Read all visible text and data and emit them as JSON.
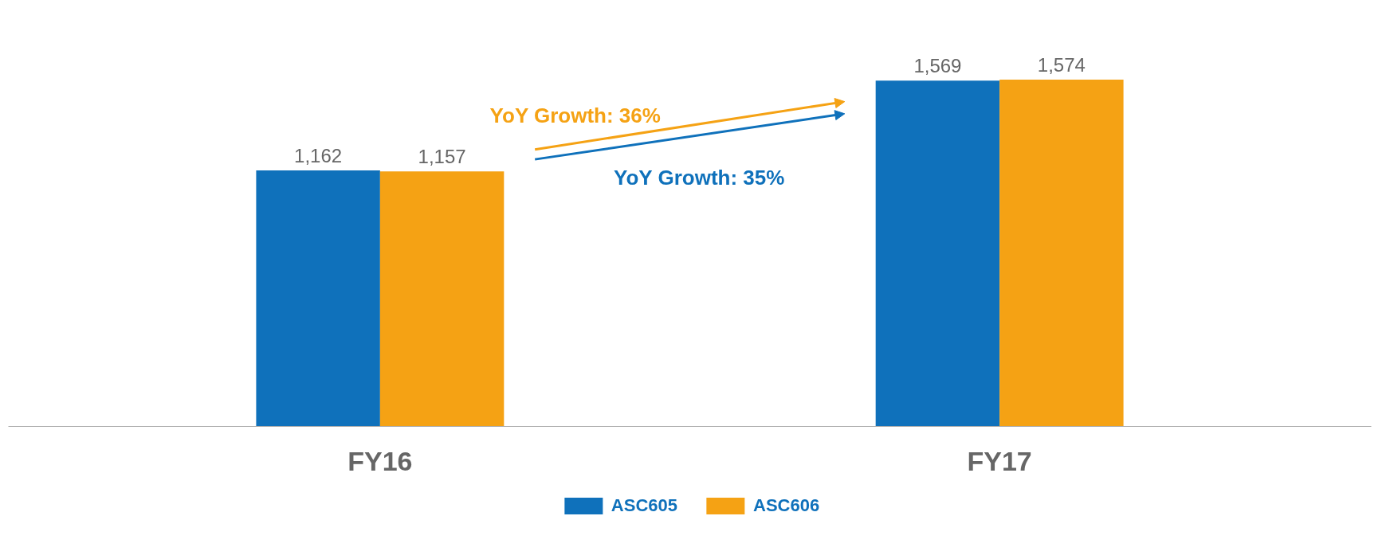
{
  "chart_data": {
    "type": "bar",
    "categories": [
      "FY16",
      "FY17"
    ],
    "series": [
      {
        "name": "ASC605",
        "color": "#0f71bb",
        "values": [
          1162,
          1569
        ],
        "value_labels": [
          "1,162",
          "1,569"
        ]
      },
      {
        "name": "ASC606",
        "color": "#f5a214",
        "values": [
          1157,
          1574
        ],
        "value_labels": [
          "1,157",
          "1,574"
        ]
      }
    ],
    "tick_labels": "x",
    "grid": false,
    "legend": "bottom",
    "annotations": [
      "YoY Growth:  36%",
      "YoY Growth:  35%"
    ]
  }
}
